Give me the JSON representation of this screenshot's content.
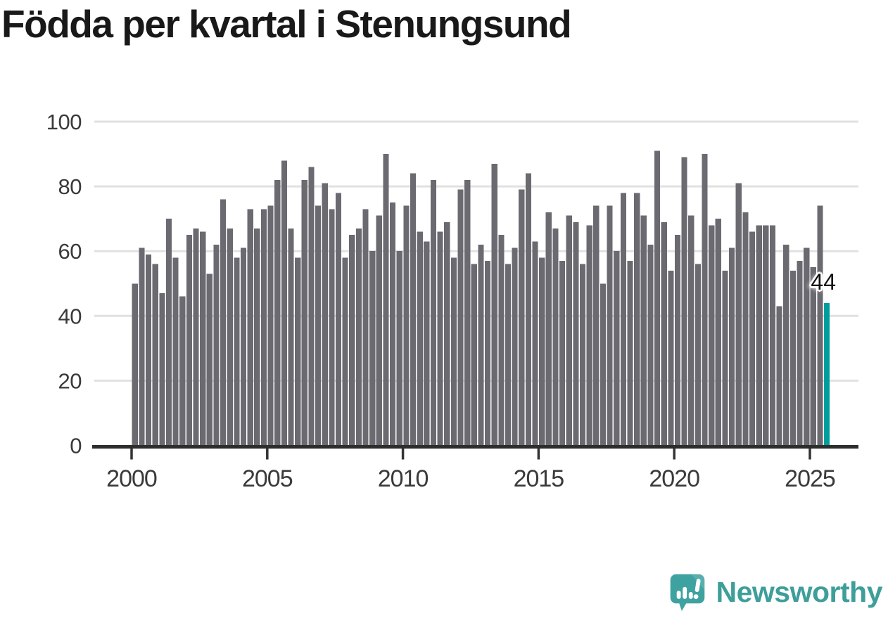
{
  "title": "Födda per kvartal i Stenungsund",
  "annotation": {
    "last_value_label": "44"
  },
  "branding": {
    "logo_text": "Newsworthy"
  },
  "colors": {
    "background": "#ffffff",
    "bar": "#6b6a70",
    "highlight": "#009e9b",
    "grid": "#e1e1e1",
    "axis": "#2d2d2d",
    "tick_label": "#3a3a3a",
    "title": "#191919",
    "annotation_text": "#111111",
    "brand": "#3e9e9a"
  },
  "chart_data": {
    "type": "bar",
    "title": "Födda per kvartal i Stenungsund",
    "xlabel": "",
    "ylabel": "",
    "x_unit": "quarter",
    "x_start": {
      "year": 2000,
      "quarter": 1
    },
    "x_end": {
      "year": 2025,
      "quarter": 3
    },
    "ylim": [
      0,
      100
    ],
    "grid": "horizontal",
    "legend": "none",
    "highlight_last": true,
    "y_ticks": [
      0,
      20,
      40,
      60,
      80,
      100
    ],
    "x_tick_years": [
      2000,
      2005,
      2010,
      2015,
      2020,
      2025
    ],
    "values": [
      50,
      61,
      59,
      56,
      47,
      70,
      58,
      46,
      65,
      67,
      66,
      53,
      62,
      76,
      67,
      58,
      61,
      73,
      67,
      73,
      74,
      82,
      88,
      67,
      58,
      82,
      86,
      74,
      81,
      73,
      78,
      58,
      65,
      67,
      73,
      60,
      71,
      90,
      75,
      60,
      74,
      84,
      66,
      63,
      82,
      66,
      69,
      58,
      79,
      82,
      56,
      62,
      57,
      87,
      65,
      56,
      61,
      79,
      84,
      63,
      58,
      72,
      67,
      57,
      71,
      69,
      56,
      68,
      74,
      50,
      74,
      60,
      78,
      57,
      78,
      71,
      62,
      91,
      69,
      54,
      65,
      89,
      71,
      56,
      90,
      68,
      70,
      54,
      61,
      81,
      72,
      66,
      68,
      68,
      68,
      43,
      62,
      54,
      57,
      61,
      55,
      74,
      44
    ]
  }
}
